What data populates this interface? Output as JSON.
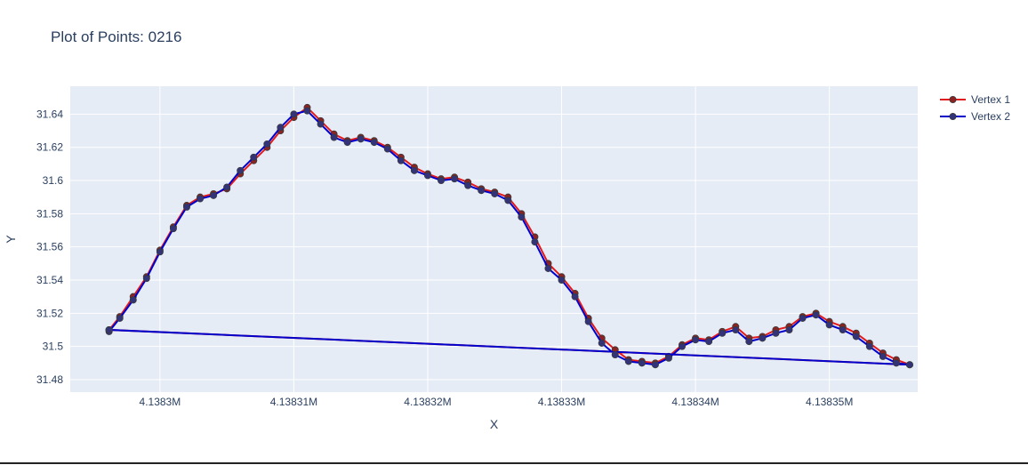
{
  "chart_data": {
    "type": "line",
    "title": "Plot of Points: 0216",
    "xlabel": "X",
    "ylabel": "Y",
    "x_ticks": [
      {
        "value": 4138300,
        "label": "4.1383M"
      },
      {
        "value": 4138310,
        "label": "4.13831M"
      },
      {
        "value": 4138320,
        "label": "4.13832M"
      },
      {
        "value": 4138330,
        "label": "4.13833M"
      },
      {
        "value": 4138340,
        "label": "4.13834M"
      },
      {
        "value": 4138350,
        "label": "4.13835M"
      }
    ],
    "y_ticks": [
      {
        "value": 31.48,
        "label": "31.48"
      },
      {
        "value": 31.5,
        "label": "31.5"
      },
      {
        "value": 31.52,
        "label": "31.52"
      },
      {
        "value": 31.54,
        "label": "31.54"
      },
      {
        "value": 31.56,
        "label": "31.56"
      },
      {
        "value": 31.58,
        "label": "31.58"
      },
      {
        "value": 31.6,
        "label": "31.6"
      },
      {
        "value": 31.62,
        "label": "31.62"
      },
      {
        "value": 31.64,
        "label": "31.64"
      }
    ],
    "xlim": [
      4138293.3,
      4138356.6
    ],
    "ylim": [
      31.4725,
      31.6568
    ],
    "grid": true,
    "legend_position": "top-right",
    "series": [
      {
        "name": "Vertex 1",
        "line_color": "#e31a1c",
        "marker_color": "#8b2323",
        "x": [
          4138296.2,
          4138297.0,
          4138298.0,
          4138299.0,
          4138300.0,
          4138301.0,
          4138302.0,
          4138303.0,
          4138304.0,
          4138305.0,
          4138306.0,
          4138307.0,
          4138308.0,
          4138309.0,
          4138310.0,
          4138311.0,
          4138312.0,
          4138313.0,
          4138314.0,
          4138315.0,
          4138316.0,
          4138317.0,
          4138318.0,
          4138319.0,
          4138320.0,
          4138321.0,
          4138322.0,
          4138323.0,
          4138324.0,
          4138325.0,
          4138326.0,
          4138327.0,
          4138328.0,
          4138329.0,
          4138330.0,
          4138331.0,
          4138332.0,
          4138333.0,
          4138334.0,
          4138335.0,
          4138336.0,
          4138337.0,
          4138338.0,
          4138339.0,
          4138340.0,
          4138341.0,
          4138342.0,
          4138343.0,
          4138344.0,
          4138345.0,
          4138346.0,
          4138347.0,
          4138348.0,
          4138349.0,
          4138350.0,
          4138351.0,
          4138352.0,
          4138353.0,
          4138354.0,
          4138355.0,
          4138356.0,
          4138296.2
        ],
        "y": [
          31.51,
          31.518,
          31.53,
          31.542,
          31.558,
          31.572,
          31.585,
          31.59,
          31.592,
          31.595,
          31.604,
          31.612,
          31.62,
          31.63,
          31.638,
          31.644,
          31.636,
          31.628,
          31.624,
          31.626,
          31.624,
          31.62,
          31.614,
          31.608,
          31.604,
          31.601,
          31.602,
          31.599,
          31.595,
          31.593,
          31.59,
          31.58,
          31.566,
          31.55,
          31.542,
          31.532,
          31.517,
          31.505,
          31.498,
          31.492,
          31.491,
          31.49,
          31.494,
          31.501,
          31.505,
          31.504,
          31.509,
          31.512,
          31.505,
          31.506,
          31.51,
          31.512,
          31.518,
          31.52,
          31.515,
          31.512,
          31.508,
          31.502,
          31.496,
          31.492,
          31.489,
          31.51
        ]
      },
      {
        "name": "Vertex 2",
        "line_color": "#0000cc",
        "marker_color": "#33337a",
        "x": [
          4138296.2,
          4138297.0,
          4138298.0,
          4138299.0,
          4138300.0,
          4138301.0,
          4138302.0,
          4138303.0,
          4138304.0,
          4138305.0,
          4138306.0,
          4138307.0,
          4138308.0,
          4138309.0,
          4138310.0,
          4138311.0,
          4138312.0,
          4138313.0,
          4138314.0,
          4138315.0,
          4138316.0,
          4138317.0,
          4138318.0,
          4138319.0,
          4138320.0,
          4138321.0,
          4138322.0,
          4138323.0,
          4138324.0,
          4138325.0,
          4138326.0,
          4138327.0,
          4138328.0,
          4138329.0,
          4138330.0,
          4138331.0,
          4138332.0,
          4138333.0,
          4138334.0,
          4138335.0,
          4138336.0,
          4138337.0,
          4138338.0,
          4138339.0,
          4138340.0,
          4138341.0,
          4138342.0,
          4138343.0,
          4138344.0,
          4138345.0,
          4138346.0,
          4138347.0,
          4138348.0,
          4138349.0,
          4138350.0,
          4138351.0,
          4138352.0,
          4138353.0,
          4138354.0,
          4138355.0,
          4138356.0,
          4138296.2
        ],
        "y": [
          31.509,
          31.517,
          31.528,
          31.541,
          31.557,
          31.571,
          31.584,
          31.589,
          31.591,
          31.596,
          31.606,
          31.614,
          31.622,
          31.632,
          31.64,
          31.642,
          31.634,
          31.626,
          31.623,
          31.625,
          31.623,
          31.619,
          31.612,
          31.606,
          31.603,
          31.6,
          31.601,
          31.597,
          31.594,
          31.592,
          31.588,
          31.578,
          31.563,
          31.547,
          31.54,
          31.53,
          31.515,
          31.502,
          31.495,
          31.491,
          31.49,
          31.489,
          31.493,
          31.5,
          31.504,
          31.503,
          31.508,
          31.51,
          31.503,
          31.505,
          31.508,
          31.51,
          31.517,
          31.519,
          31.513,
          31.51,
          31.506,
          31.5,
          31.494,
          31.49,
          31.489,
          31.51
        ]
      }
    ]
  }
}
